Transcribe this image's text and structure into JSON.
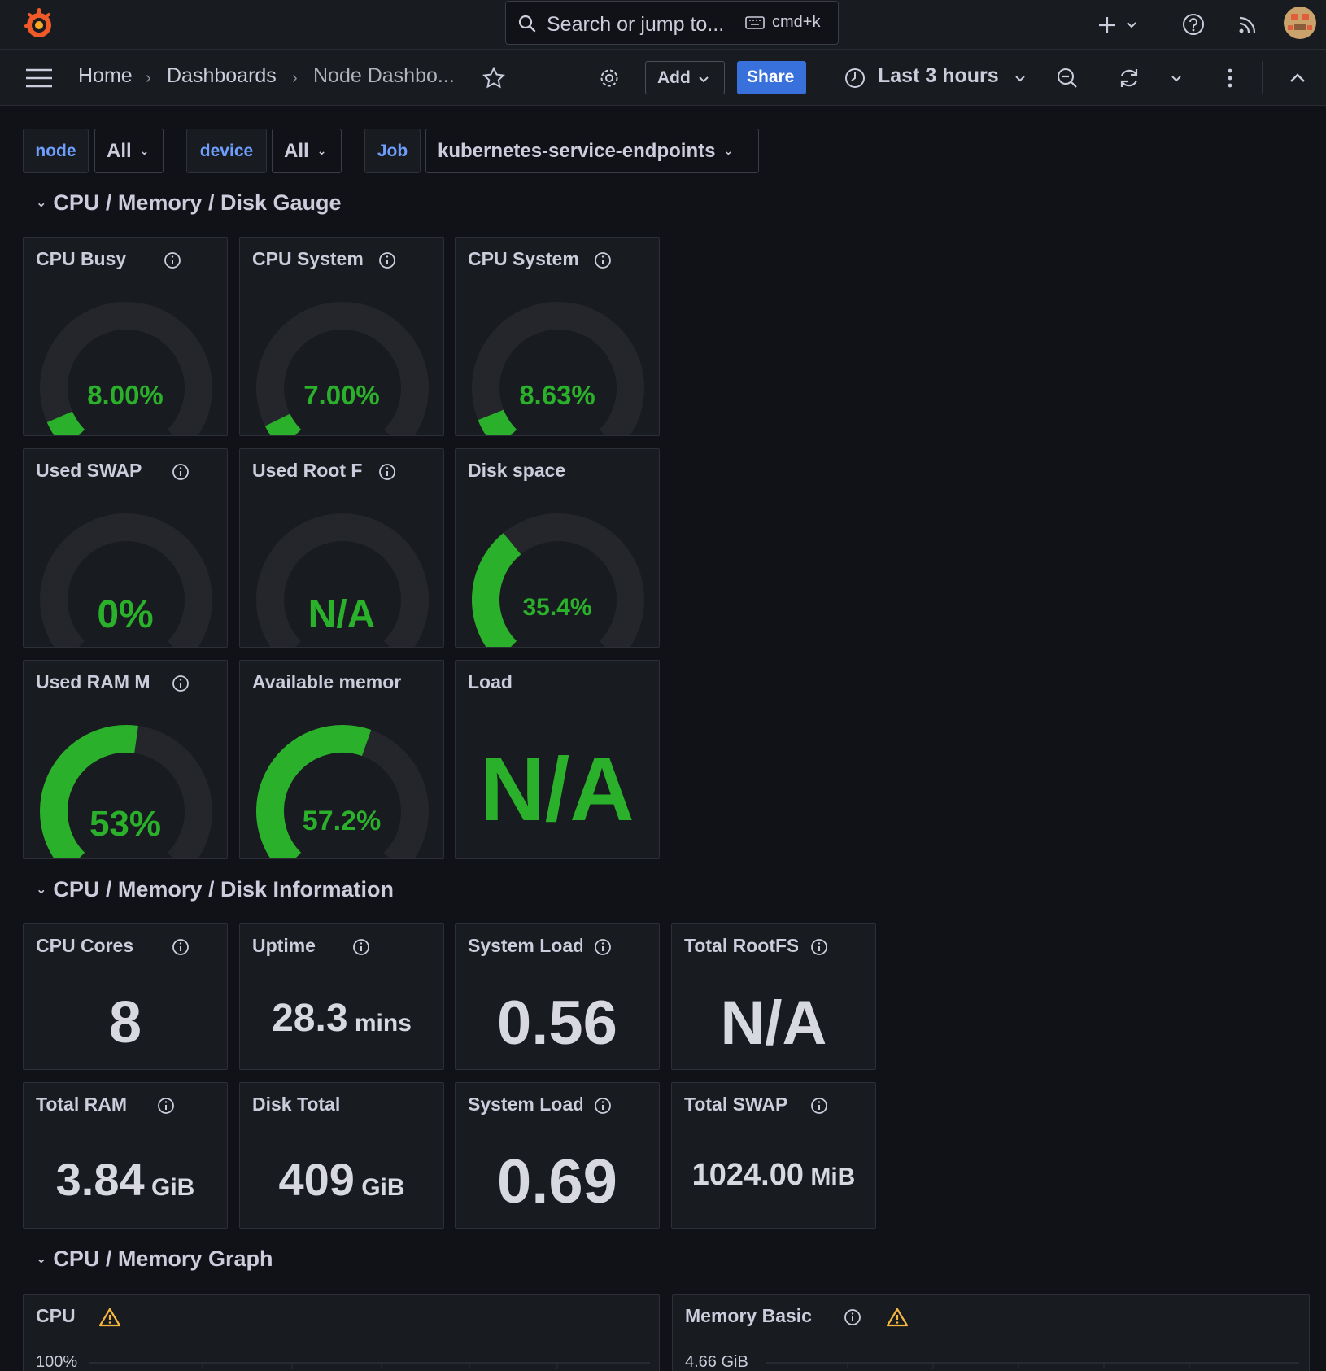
{
  "topbar": {
    "search_placeholder": "Search or jump to...",
    "shortcut": "cmd+k"
  },
  "breadcrumb": [
    "Home",
    "Dashboards",
    "Node Dashbo..."
  ],
  "toolbar": {
    "add_label": "Add",
    "share_label": "Share",
    "time_range": "Last 3 hours"
  },
  "variables": [
    {
      "label": "node",
      "value": "All"
    },
    {
      "label": "device",
      "value": "All"
    },
    {
      "label": "Job",
      "value": "kubernetes-service-endpoints"
    }
  ],
  "colors": {
    "gauge_green": "#2bb02b",
    "gauge_orange": "#ff780a",
    "gauge_red": "#e02f44",
    "track": "#24262c",
    "accent_blue": "#3871dc",
    "warning": "#f5b73d"
  },
  "rows": {
    "gauge": "CPU / Memory / Disk Gauge",
    "info": "CPU / Memory / Disk Information",
    "graph": "CPU / Memory Graph"
  },
  "gauges": [
    {
      "title": "CPU Busy",
      "display": "8.00%",
      "value": 8,
      "info": true
    },
    {
      "title": "CPU System",
      "display": "7.00%",
      "value": 7,
      "info": true
    },
    {
      "title": "CPU System",
      "display": "8.63%",
      "value": 8.63,
      "info": true
    },
    {
      "title": "Used SWAP",
      "display": "0%",
      "value": 0,
      "info": true
    },
    {
      "title": "Used Root F",
      "display": "N/A",
      "value": 0,
      "info": true
    },
    {
      "title": "Disk space",
      "display": "35.4%",
      "value": 35.4,
      "info": false
    },
    {
      "title": "Used RAM M",
      "display": "53%",
      "value": 53,
      "info": true
    },
    {
      "title": "Available memor",
      "display": "57.2%",
      "value": 57.2,
      "info": false
    },
    {
      "title": "Load",
      "display": "N/A",
      "value": 0,
      "info": false
    }
  ],
  "stats": [
    {
      "title": "CPU Cores",
      "value": "8",
      "unit": ""
    },
    {
      "title": "Uptime",
      "value": "28.3",
      "unit": "mins"
    },
    {
      "title": "System Load",
      "value": "0.56",
      "unit": ""
    },
    {
      "title": "Total RootFS",
      "value": "N/A",
      "unit": ""
    },
    {
      "title": "Total RAM",
      "value": "3.84",
      "unit": "GiB"
    },
    {
      "title": "Disk Total",
      "value": "409",
      "unit": "GiB"
    },
    {
      "title": "System Load",
      "value": "0.69",
      "unit": ""
    },
    {
      "title": "Total SWAP",
      "value": "1024.00",
      "unit": "MiB"
    }
  ],
  "graphs": [
    {
      "title": "CPU",
      "axis_top": "100%"
    },
    {
      "title": "Memory Basic",
      "axis_top": "4.66 GiB"
    }
  ]
}
